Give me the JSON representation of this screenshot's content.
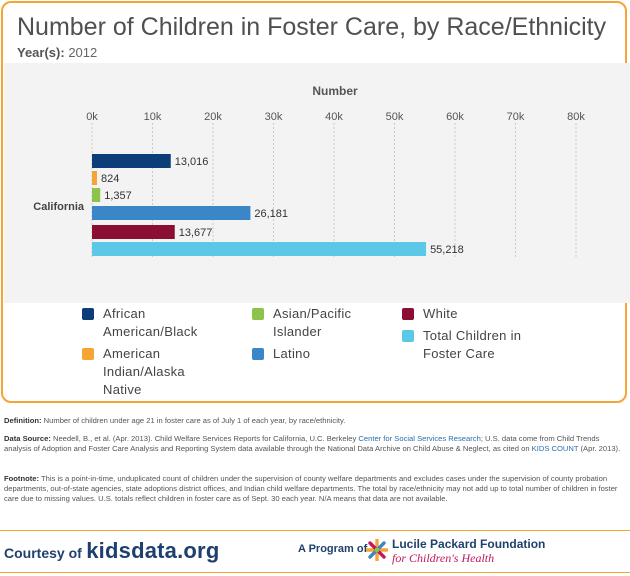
{
  "title": "Number of Children in Foster Care, by Race/Ethnicity",
  "year_label": "Year(s):",
  "year_value": "2012",
  "chart_data": {
    "type": "bar",
    "orientation": "horizontal",
    "xlabel": "Number",
    "xlim": [
      0,
      80000
    ],
    "ticks": [
      0,
      10000,
      20000,
      30000,
      40000,
      50000,
      60000,
      70000,
      80000
    ],
    "tick_labels": [
      "0k",
      "10k",
      "20k",
      "30k",
      "40k",
      "50k",
      "60k",
      "70k",
      "80k"
    ],
    "categories": [
      "California"
    ],
    "series": [
      {
        "name": "African American/Black",
        "values": [
          13016
        ],
        "label": "13,016",
        "color": "#0d3d78"
      },
      {
        "name": "American Indian/Alaska Native",
        "values": [
          824
        ],
        "label": "824",
        "color": "#f6a436"
      },
      {
        "name": "Asian/Pacific Islander",
        "values": [
          1357
        ],
        "label": "1,357",
        "color": "#8dc34a"
      },
      {
        "name": "Latino",
        "values": [
          26181
        ],
        "label": "26,181",
        "color": "#3a86c6"
      },
      {
        "name": "White",
        "values": [
          13677
        ],
        "label": "13,677",
        "color": "#8a0f33"
      },
      {
        "name": "Total Children in Foster Care",
        "values": [
          55218
        ],
        "label": "55,218",
        "color": "#5bc8e8"
      }
    ]
  },
  "legend": {
    "col1": [
      {
        "lines": [
          "African",
          "American/Black"
        ],
        "color": "#0d3d78",
        "icon": "legend-swatch"
      },
      {
        "lines": [
          "American",
          "Indian/Alaska",
          "Native"
        ],
        "color": "#f6a436",
        "icon": "legend-swatch"
      }
    ],
    "col2": [
      {
        "lines": [
          "Asian/Pacific",
          "Islander"
        ],
        "color": "#8dc34a",
        "icon": "legend-swatch"
      },
      {
        "lines": [
          "Latino"
        ],
        "color": "#3a86c6",
        "icon": "legend-swatch"
      }
    ],
    "col3": [
      {
        "lines": [
          "White"
        ],
        "color": "#8a0f33",
        "icon": "legend-swatch"
      },
      {
        "lines": [
          "Total Children in",
          "Foster Care"
        ],
        "color": "#5bc8e8",
        "icon": "legend-swatch"
      }
    ]
  },
  "definition": {
    "label": "Definition:",
    "text": "Number of children under age 21 in foster care as of July 1 of each year, by race/ethnicity."
  },
  "data_source": {
    "label": "Data Source:",
    "text1": "Needell, B., et al. (Apr. 2013). Child Welfare Services Reports for California, U.C. Berkeley",
    "link1": "Center for Social Services Research",
    "text2": "; U.S. data come from Child Trends analysis of Adoption and Foster Care Analysis and Reporting System data available through the National Data Archive on Child Abuse & Neglect, as cited on",
    "link2": "KIDS COUNT",
    "text3": "(Apr. 2013)."
  },
  "footnote": {
    "label": "Footnote:",
    "text": "This is a point-in-time, unduplicated count of children under the supervision of county welfare departments and excludes cases under the supervision of county probation departments, out-of-state agencies, state adoptions district offices, and Indian child welfare departments. The total by race/ethnicity may not add up to total number of children in foster care due to missing values. U.S. totals reflect children in foster care as of Sept. 30 each year. N/A means that data are not available."
  },
  "footer": {
    "courtesy": "Courtesy of",
    "site": "kidsdata.org",
    "program": "A Program of",
    "org_name": "Lucile Packard Foundation",
    "org_sub": "for Children's Health",
    "logo_icon": "lucile-packard-logo-icon"
  }
}
